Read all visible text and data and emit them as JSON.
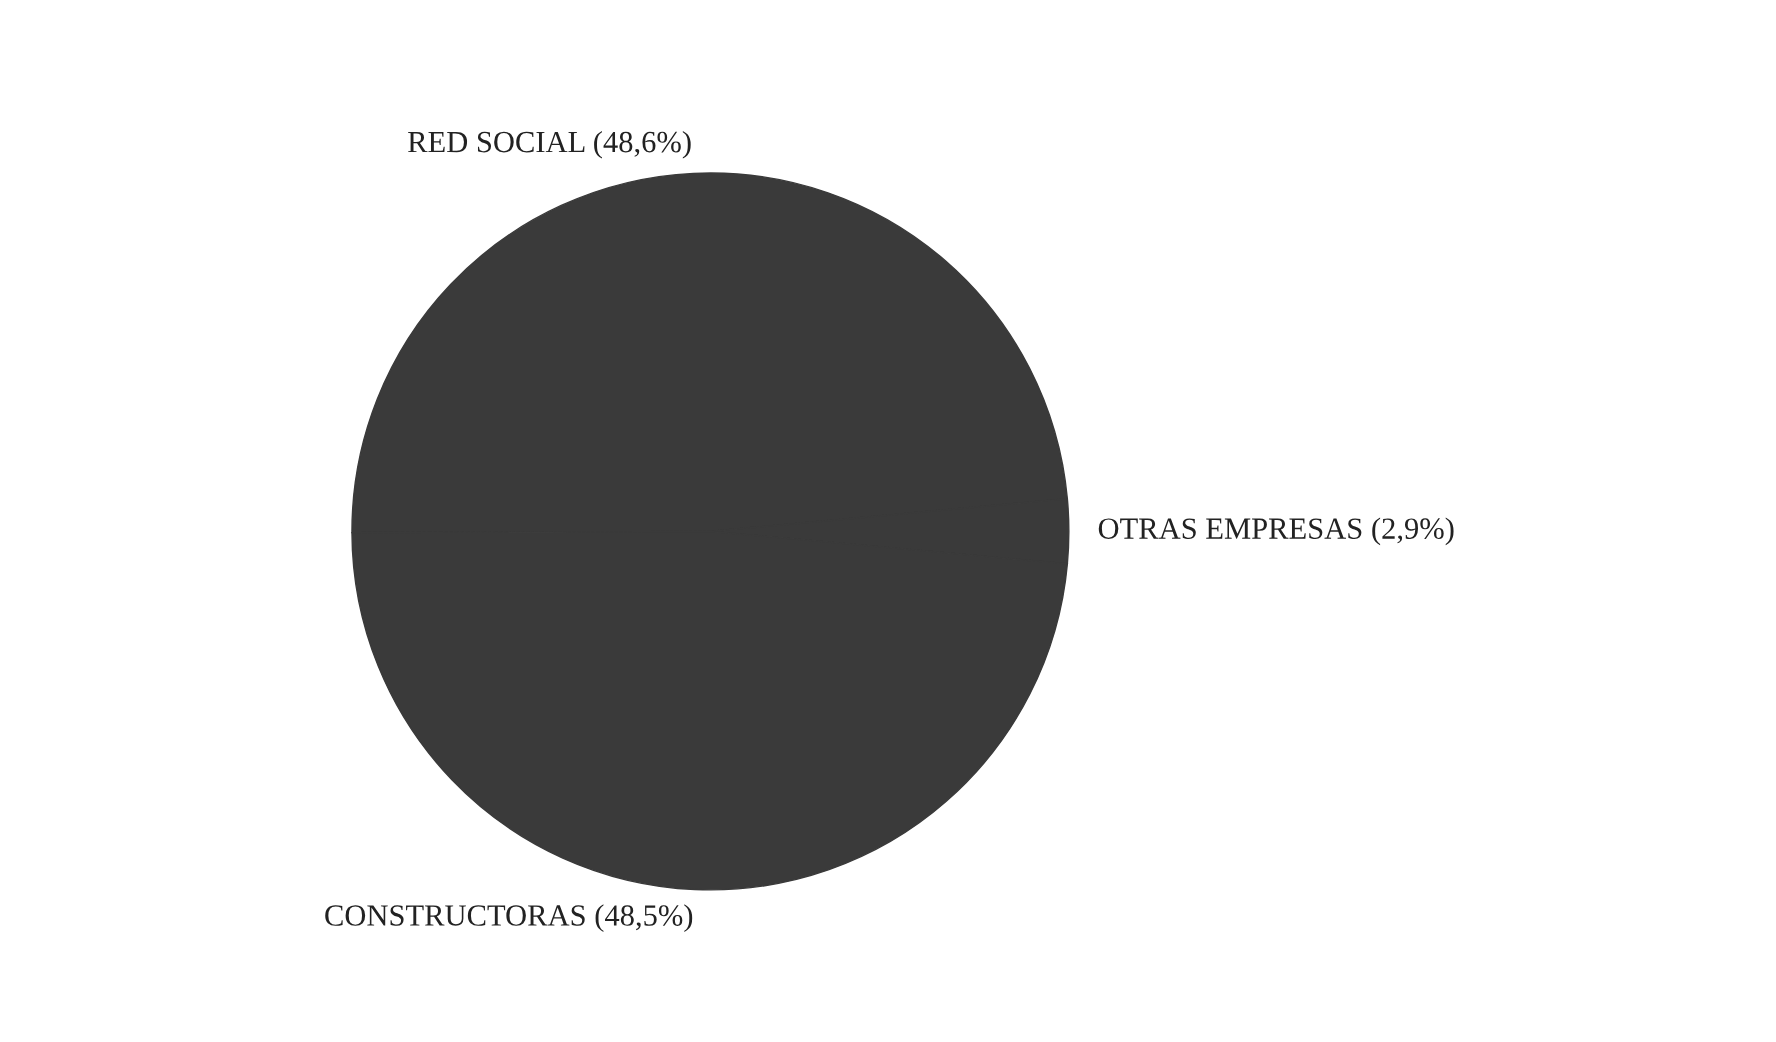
{
  "chart_data": {
    "type": "pie",
    "categories": [
      "RED SOCIAL (48,6%)",
      "OTRAS EMPRESAS (2,9%)",
      "CONSTRUCTORAS (48,5%)"
    ],
    "values": [
      48.6,
      2.9,
      48.5
    ],
    "colors": [
      "#3a3a3a",
      "#3a3a3a",
      "#3a3a3a"
    ]
  }
}
